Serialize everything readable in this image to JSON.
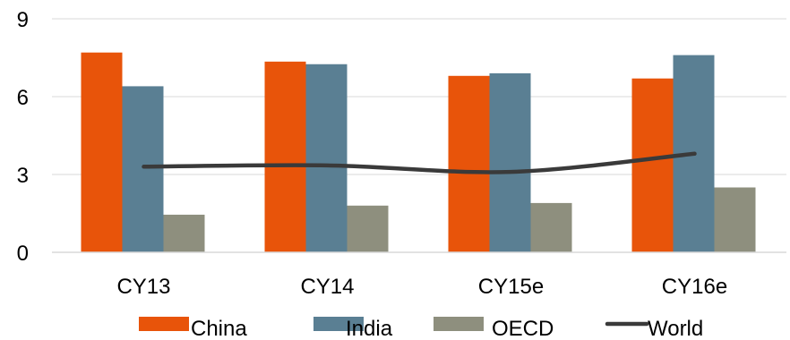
{
  "chart_data": {
    "type": "bar",
    "categories": [
      "CY13",
      "CY14",
      "CY15e",
      "CY16e"
    ],
    "series": [
      {
        "name": "China",
        "kind": "bar",
        "color": "#E8540A",
        "values": [
          7.7,
          7.35,
          6.8,
          6.7
        ]
      },
      {
        "name": "India",
        "kind": "bar",
        "color": "#5A7F93",
        "values": [
          6.4,
          7.25,
          6.9,
          7.6
        ]
      },
      {
        "name": "OECD",
        "kind": "bar",
        "color": "#8E8F7E",
        "values": [
          1.45,
          1.8,
          1.9,
          2.5
        ]
      },
      {
        "name": "World",
        "kind": "line",
        "color": "#3A3A3A",
        "values": [
          3.3,
          3.35,
          3.1,
          3.8
        ]
      }
    ],
    "ylim": [
      0,
      9
    ],
    "yticks": [
      "0",
      "3",
      "6",
      "9"
    ],
    "grid": true,
    "legend_position": "bottom"
  }
}
